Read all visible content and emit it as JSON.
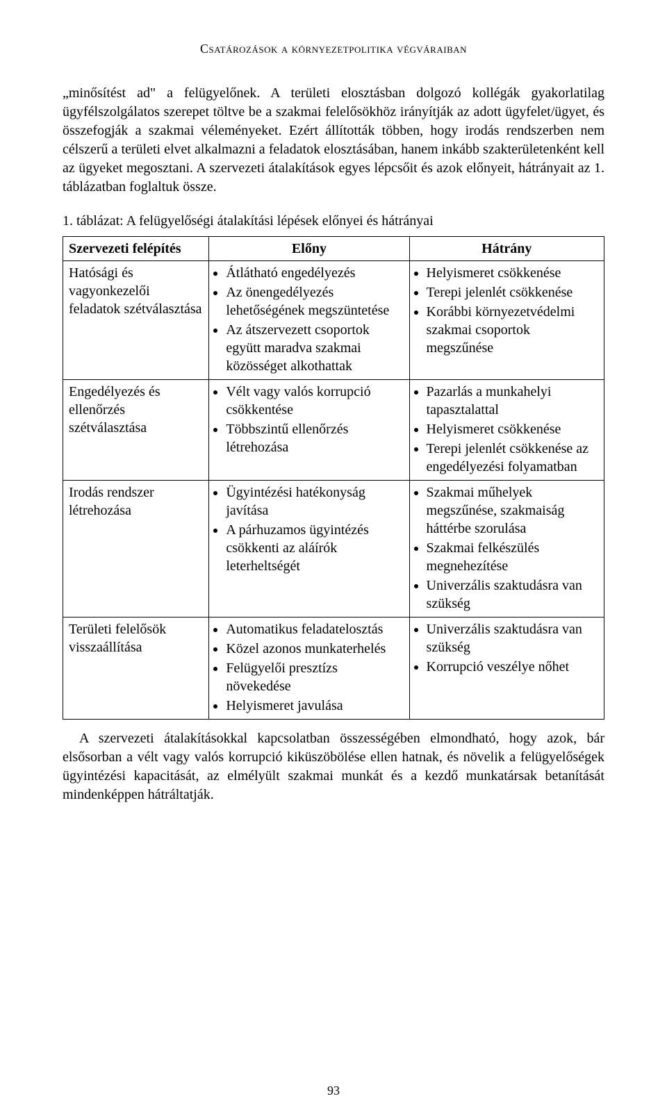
{
  "runningHead": "Csatározások a környezetpolitika végváraiban",
  "para1": "„minősítést ad\" a felügyelőnek. A területi elosztásban dolgozó kollégák gyakorlatilag ügyfélszolgálatos szerepet töltve be a szakmai felelősökhöz irányítják az adott ügyfelet/ügyet, és összefogják a szakmai véleményeket. Ezért állították többen, hogy irodás rendszerben nem célszerű a területi elvet alkalmazni a feladatok elosztásában, hanem inkább szakterületenként kell az ügyeket megosztani. A szervezeti átalakítások egyes lépcsőit és azok előnyeit, hátrányait az 1. táblázatban foglaltuk össze.",
  "tableCaption": "1. táblázat: A felügyelőségi átalakítási lépések előnyei és hátrányai",
  "table": {
    "columns": [
      "Szervezeti felépítés",
      "Előny",
      "Hátrány"
    ],
    "colWidths": [
      "27%",
      "37%",
      "36%"
    ],
    "rows": [
      {
        "c0": "Hatósági és vagyonkezelői feladatok szétválasztása",
        "c1": [
          "Átlátható engedélyezés",
          "Az önengedélyezés lehetőségének megszüntetése",
          "Az átszervezett csoportok együtt maradva szakmai közösséget alkothattak"
        ],
        "c2": [
          "Helyismeret csökkenése",
          "Terepi jelenlét csökkenése",
          "Korábbi környezetvédelmi szakmai csoportok megszűnése"
        ]
      },
      {
        "c0": "Engedélyezés és ellenőrzés szétválasztása",
        "c1": [
          "Vélt vagy valós korrupció csökkentése",
          "Többszintű ellenőrzés létrehozása"
        ],
        "c2": [
          "Pazarlás a munkahelyi tapasztalattal",
          "Helyismeret csökkenése",
          "Terepi jelenlét csökkenése az engedélyezési folyamatban"
        ]
      },
      {
        "c0": "Irodás rendszer létrehozása",
        "c1": [
          "Ügyintézési hatékonyság javítása",
          "A párhuzamos ügyintézés csökkenti az aláírók leterheltségét"
        ],
        "c2": [
          "Szakmai műhelyek megszűnése, szakmaiság háttérbe szorulása",
          "Szakmai felkészülés megnehezítése",
          "Univerzális szaktudásra van szükség"
        ]
      },
      {
        "c0": "Területi felelősök visszaállítása",
        "c1": [
          "Automatikus feladatelosztás",
          "Közel azonos munkaterhelés",
          "Felügyelői presztízs növekedése",
          "Helyismeret javulása"
        ],
        "c2": [
          "Univerzális szaktudásra van szükség",
          "Korrupció veszélye nőhet"
        ]
      }
    ]
  },
  "para2": "A szervezeti átalakításokkal kapcsolatban összességében elmondható, hogy azok, bár elsősorban a vélt vagy valós korrupció kiküszöbölése ellen hatnak, és növelik a felügyelőségek ügyintézési kapacitását, az elmélyült szakmai munkát és a kezdő munkatársak betanítását mindenképpen hátráltatják.",
  "pageNumber": "93"
}
